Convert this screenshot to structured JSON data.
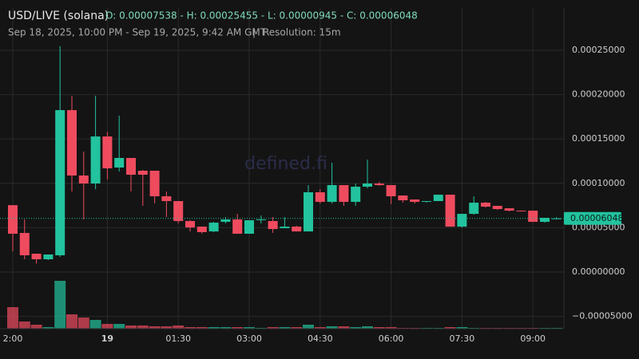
{
  "chart_data": {
    "type": "candlestick",
    "title": "USD/LIVE (solana)",
    "subtitle": "O: 0.00007538 - H: 0.00025455 - L: 0.00000945 - C: 0.00006048",
    "date_range": "Sep 18, 2025, 10:00 PM - Sep 19, 2025, 9:42 AM GMT",
    "separator": "|",
    "resolution": "Resolution: 15m",
    "watermark": "defined.fi",
    "categories": [
      "2:00",
      null,
      null,
      null,
      null,
      null,
      null,
      null,
      "19",
      null,
      null,
      null,
      null,
      null,
      "01:30",
      null,
      null,
      null,
      null,
      null,
      "03:00",
      null,
      null,
      null,
      null,
      null,
      "04:30",
      null,
      null,
      null,
      null,
      null,
      "06:00",
      null,
      null,
      null,
      null,
      null,
      "07:30",
      null,
      null,
      null,
      null,
      null,
      "09:00",
      null,
      null
    ],
    "open": [
      7.538e-05,
      4.41e-05,
      2.07e-05,
      1.44e-05,
      1.89e-05,
      0.0001825,
      0.0001088,
      9.98e-05,
      0.0001528,
      0.0001178,
      0.0001286,
      0.0001142,
      0.0001142,
      8.54e-05,
      8e-05,
      5.75e-05,
      5.12e-05,
      4.58e-05,
      5.66e-05,
      5.93e-05,
      4.32e-05,
      5.84e-05,
      5.75e-05,
      4.94e-05,
      5.12e-05,
      4.58e-05,
      8.99e-05,
      7.91e-05,
      9.8e-05,
      7.91e-05,
      9.62e-05,
      9.98e-05,
      9.8e-05,
      8.63e-05,
      8.18e-05,
      7.91e-05,
      8e-05,
      8.72e-05,
      5.12e-05,
      6.56e-05,
      7.82e-05,
      7.46e-05,
      7.19e-05,
      6.92e-05,
      6.92e-05,
      5.66e-05,
      6.02e-05
    ],
    "high": [
      7.55e-05,
      5.93e-05,
      2.07e-05,
      1.98e-05,
      0.00025455,
      0.0001987,
      0.0001358,
      0.0001987,
      0.0001582,
      0.0001762,
      0.0001286,
      0.0001151,
      0.0001142,
      9.08e-05,
      8e-05,
      5.84e-05,
      5.12e-05,
      5.66e-05,
      6.2e-05,
      6.56e-05,
      5.84e-05,
      6.38e-05,
      6.2e-05,
      6.2e-05,
      5.21e-05,
      9.8e-05,
      9.35e-05,
      0.0001232,
      9.8e-05,
      9.98e-05,
      0.0001268,
      0.0001016,
      9.8e-05,
      8.63e-05,
      8.18e-05,
      8e-05,
      8.72e-05,
      8.72e-05,
      6.56e-05,
      8.54e-05,
      7.91e-05,
      7.46e-05,
      7.19e-05,
      6.92e-05,
      6.92e-05,
      6.11e-05,
      6.2e-05
    ],
    "low": [
      2.34e-05,
      1.44e-05,
      9.45e-06,
      1.35e-05,
      1.71e-05,
      9.08e-05,
      5.93e-05,
      9.35e-05,
      0.0001043,
      0.0001133,
      9.08e-05,
      7.46e-05,
      7.73e-05,
      6.2e-05,
      5.48e-05,
      4.58e-05,
      4.31e-05,
      4.49e-05,
      5.48e-05,
      4.32e-05,
      4.32e-05,
      5.48e-05,
      4.41e-05,
      4.94e-05,
      4.58e-05,
      4.58e-05,
      7.73e-05,
      7.73e-05,
      7.46e-05,
      7.46e-05,
      9.44e-05,
      9.71e-05,
      7.64e-05,
      7.82e-05,
      7.73e-05,
      7.82e-05,
      8e-05,
      5.12e-05,
      5.03e-05,
      6.47e-05,
      7.28e-05,
      7.01e-05,
      6.83e-05,
      6.83e-05,
      5.66e-05,
      5.57e-05,
      5.93e-05
    ],
    "close": [
      4.32e-05,
      1.89e-05,
      1.44e-05,
      1.98e-05,
      0.0001825,
      0.0001088,
      9.98e-05,
      0.0001528,
      0.0001169,
      0.0001286,
      0.0001097,
      0.0001097,
      8.54e-05,
      8e-05,
      5.75e-05,
      5.03e-05,
      4.5e-05,
      5.57e-05,
      5.93e-05,
      4.32e-05,
      5.84e-05,
      5.93e-05,
      4.85e-05,
      5.12e-05,
      4.58e-05,
      8.99e-05,
      7.91e-05,
      9.8e-05,
      7.91e-05,
      9.62e-05,
      9.98e-05,
      9.8e-05,
      8.54e-05,
      8.09e-05,
      7.91e-05,
      8e-05,
      8.72e-05,
      5.12e-05,
      6.56e-05,
      7.82e-05,
      7.37e-05,
      7.1e-05,
      6.92e-05,
      6.83e-05,
      5.66e-05,
      6.11e-05,
      6.048e-05
    ],
    "volume": [
      27,
      9,
      5,
      2,
      60,
      18,
      14,
      11,
      6,
      6,
      4,
      4,
      3,
      3,
      4,
      2,
      2,
      2,
      2,
      2,
      2,
      1,
      2,
      2,
      2,
      5,
      2,
      3,
      3,
      2,
      3,
      2,
      2,
      1,
      1,
      1,
      1,
      2,
      2,
      1,
      1,
      1,
      1,
      1,
      1,
      1,
      1
    ],
    "up_color": "#22c39e",
    "down_color": "#ef4b5f",
    "ylim": [
      -6.38e-05,
      0.0002976
    ],
    "yticks": [
      {
        "value": 0.00025,
        "label": "0.00025000"
      },
      {
        "value": 0.0002,
        "label": "0.00020000"
      },
      {
        "value": 0.00015,
        "label": "0.00015000"
      },
      {
        "value": 0.0001,
        "label": "0.00010000"
      },
      {
        "value": 5e-05,
        "label": "0.00005000"
      },
      {
        "value": 0,
        "label": "0.00000000"
      },
      {
        "value": -5e-05,
        "label": "−0.00005000"
      }
    ],
    "last_price": {
      "value": 6.048e-05,
      "label": "0.00006048"
    },
    "grid": true
  }
}
